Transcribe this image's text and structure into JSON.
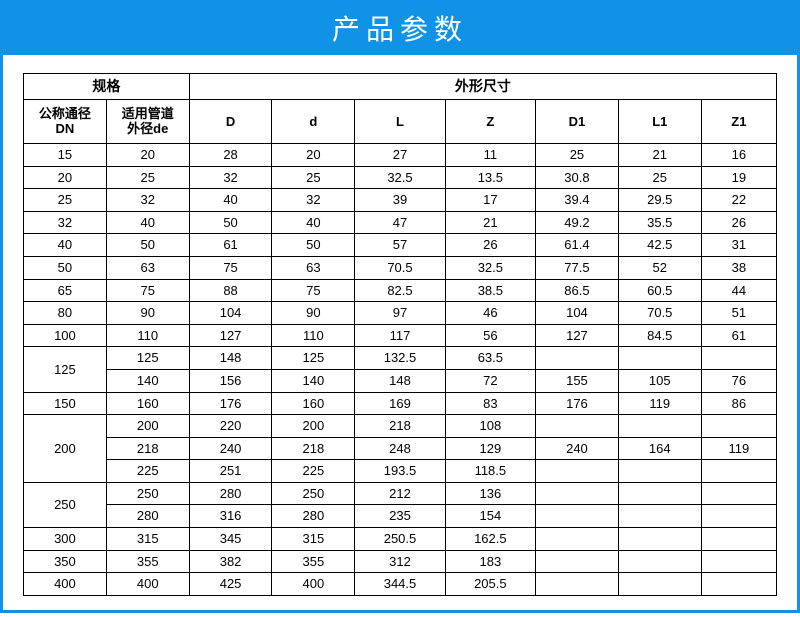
{
  "title": "产品参数",
  "colors": {
    "accent": "#1092e7",
    "title_text": "#ffffff",
    "border": "#000000",
    "bg": "#ffffff"
  },
  "table": {
    "group_headers": {
      "spec": "规格",
      "dims": "外形尺寸"
    },
    "col_headers": {
      "dn": "公称通径\nDN",
      "de": "适用管道\n外径de",
      "D": "D",
      "d": "d",
      "L": "L",
      "Z": "Z",
      "D1": "D1",
      "L1": "L1",
      "Z1": "Z1"
    },
    "rows": [
      {
        "dn": "15",
        "dn_span": 1,
        "de": "20",
        "D": "28",
        "d": "20",
        "L": "27",
        "Z": "11",
        "D1": "25",
        "L1": "21",
        "Z1": "16"
      },
      {
        "dn": "20",
        "dn_span": 1,
        "de": "25",
        "D": "32",
        "d": "25",
        "L": "32.5",
        "Z": "13.5",
        "D1": "30.8",
        "L1": "25",
        "Z1": "19"
      },
      {
        "dn": "25",
        "dn_span": 1,
        "de": "32",
        "D": "40",
        "d": "32",
        "L": "39",
        "Z": "17",
        "D1": "39.4",
        "L1": "29.5",
        "Z1": "22"
      },
      {
        "dn": "32",
        "dn_span": 1,
        "de": "40",
        "D": "50",
        "d": "40",
        "L": "47",
        "Z": "21",
        "D1": "49.2",
        "L1": "35.5",
        "Z1": "26"
      },
      {
        "dn": "40",
        "dn_span": 1,
        "de": "50",
        "D": "61",
        "d": "50",
        "L": "57",
        "Z": "26",
        "D1": "61.4",
        "L1": "42.5",
        "Z1": "31"
      },
      {
        "dn": "50",
        "dn_span": 1,
        "de": "63",
        "D": "75",
        "d": "63",
        "L": "70.5",
        "Z": "32.5",
        "D1": "77.5",
        "L1": "52",
        "Z1": "38"
      },
      {
        "dn": "65",
        "dn_span": 1,
        "de": "75",
        "D": "88",
        "d": "75",
        "L": "82.5",
        "Z": "38.5",
        "D1": "86.5",
        "L1": "60.5",
        "Z1": "44"
      },
      {
        "dn": "80",
        "dn_span": 1,
        "de": "90",
        "D": "104",
        "d": "90",
        "L": "97",
        "Z": "46",
        "D1": "104",
        "L1": "70.5",
        "Z1": "51"
      },
      {
        "dn": "100",
        "dn_span": 1,
        "de": "110",
        "D": "127",
        "d": "110",
        "L": "117",
        "Z": "56",
        "D1": "127",
        "L1": "84.5",
        "Z1": "61"
      },
      {
        "dn": "125",
        "dn_span": 2,
        "de": "125",
        "D": "148",
        "d": "125",
        "L": "132.5",
        "Z": "63.5",
        "D1": "",
        "L1": "",
        "Z1": ""
      },
      {
        "dn": null,
        "de": "140",
        "D": "156",
        "d": "140",
        "L": "148",
        "Z": "72",
        "D1": "155",
        "L1": "105",
        "Z1": "76"
      },
      {
        "dn": "150",
        "dn_span": 1,
        "de": "160",
        "D": "176",
        "d": "160",
        "L": "169",
        "Z": "83",
        "D1": "176",
        "L1": "119",
        "Z1": "86"
      },
      {
        "dn": "200",
        "dn_span": 3,
        "de": "200",
        "D": "220",
        "d": "200",
        "L": "218",
        "Z": "108",
        "D1": "",
        "L1": "",
        "Z1": ""
      },
      {
        "dn": null,
        "de": "218",
        "D": "240",
        "d": "218",
        "L": "248",
        "Z": "129",
        "D1": "240",
        "L1": "164",
        "Z1": "119"
      },
      {
        "dn": null,
        "de": "225",
        "D": "251",
        "d": "225",
        "L": "193.5",
        "Z": "118.5",
        "D1": "",
        "L1": "",
        "Z1": ""
      },
      {
        "dn": "250",
        "dn_span": 2,
        "de": "250",
        "D": "280",
        "d": "250",
        "L": "212",
        "Z": "136",
        "D1": "",
        "L1": "",
        "Z1": ""
      },
      {
        "dn": null,
        "de": "280",
        "D": "316",
        "d": "280",
        "L": "235",
        "Z": "154",
        "D1": "",
        "L1": "",
        "Z1": ""
      },
      {
        "dn": "300",
        "dn_span": 1,
        "de": "315",
        "D": "345",
        "d": "315",
        "L": "250.5",
        "Z": "162.5",
        "D1": "",
        "L1": "",
        "Z1": ""
      },
      {
        "dn": "350",
        "dn_span": 1,
        "de": "355",
        "D": "382",
        "d": "355",
        "L": "312",
        "Z": "183",
        "D1": "",
        "L1": "",
        "Z1": ""
      },
      {
        "dn": "400",
        "dn_span": 1,
        "de": "400",
        "D": "425",
        "d": "400",
        "L": "344.5",
        "Z": "205.5",
        "D1": "",
        "L1": "",
        "Z1": ""
      }
    ]
  }
}
